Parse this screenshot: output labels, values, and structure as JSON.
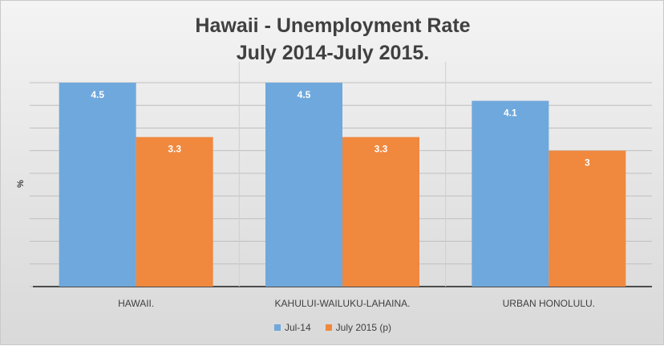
{
  "chart_data": {
    "type": "bar",
    "title": [
      "Hawaii - Unemployment Rate",
      "July 2014-July 2015."
    ],
    "ylabel": "%",
    "xlabel": "",
    "categories": [
      "HAWAII.",
      "KAHULUI-WAILUKU-LAHAINA.",
      "URBAN HONOLULU."
    ],
    "series": [
      {
        "name": "Jul-14",
        "values": [
          4.5,
          4.5,
          4.1
        ],
        "color": "#6fa8dc",
        "label_text": [
          "4.5",
          "4.5",
          "4.1"
        ]
      },
      {
        "name": "July 2015 (p)",
        "values": [
          3.3,
          3.3,
          3.0
        ],
        "color": "#f0883e",
        "label_text": [
          "3.3",
          "3.3",
          "3"
        ]
      }
    ],
    "ylim": [
      0,
      4.5
    ],
    "grid": true,
    "legend_position": "bottom",
    "data_labels": true
  }
}
